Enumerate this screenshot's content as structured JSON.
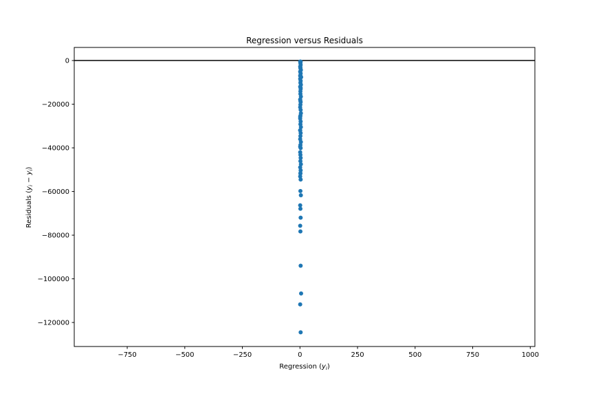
{
  "chart_data": {
    "type": "scatter",
    "title": "Regression versus Residuals",
    "xlabel": "Regression ($\\hat{y}_i$)",
    "xlabel_parts": {
      "main": "Regression (",
      "hat": "y",
      "sub": "i",
      "close": ")"
    },
    "ylabel": "Residuals ($\\hat{y}_i - y_i$)",
    "ylabel_parts": {
      "main": "Residuals (",
      "hat": "y",
      "sub": "i",
      "minus": " − y",
      "sub2": "i",
      "close": ")"
    },
    "xlim": [
      -980,
      1020
    ],
    "ylim": [
      -131000,
      6000
    ],
    "xticks": [
      -750,
      -500,
      -250,
      0,
      250,
      500,
      750,
      1000
    ],
    "xtick_labels": [
      "−750",
      "−500",
      "−250",
      "0",
      "250",
      "500",
      "750",
      "1000"
    ],
    "yticks": [
      0,
      -20000,
      -40000,
      -60000,
      -80000,
      -100000,
      -120000
    ],
    "ytick_labels": [
      "0",
      "−20000",
      "−40000",
      "−60000",
      "−80000",
      "−100000",
      "−120000"
    ],
    "reference_line": {
      "y": 0,
      "color": "#000000"
    },
    "grid": false,
    "marker_color": "#1f77b4",
    "line_color": "#000000",
    "x": [
      1,
      2,
      3,
      1,
      2,
      4,
      1,
      3,
      2,
      5,
      1,
      3,
      2,
      4,
      1,
      3,
      2,
      2,
      4,
      1,
      3,
      2,
      1,
      3,
      4,
      2,
      1,
      3,
      2,
      4,
      1,
      3,
      2,
      1,
      4,
      2,
      3,
      1,
      2,
      3,
      2,
      4,
      1,
      3,
      2,
      1,
      3,
      2,
      4,
      1,
      2,
      3,
      1,
      2,
      3,
      5,
      1,
      3,
      3,
      2,
      1,
      3,
      2,
      1,
      1,
      1,
      2
    ],
    "y": [
      -500,
      -1200,
      -2000,
      -2800,
      -3500,
      -4300,
      -5100,
      -5900,
      -6800,
      -7600,
      -8400,
      -9300,
      -10200,
      -11100,
      -12000,
      -13000,
      -14100,
      -15300,
      -16500,
      -17800,
      -19000,
      -20200,
      -21400,
      -22600,
      -24100,
      -25300,
      -26600,
      -27900,
      -29200,
      -30500,
      -31900,
      -33200,
      -34600,
      -36000,
      -37300,
      -38700,
      -40100,
      -42000,
      -43200,
      -44600,
      -46100,
      -47500,
      -48900,
      -50300,
      -51600,
      -53100,
      -54500,
      -59800,
      -61700,
      -66300,
      -67900,
      -72000,
      -75700,
      -78300,
      -94000,
      -106700,
      -111700,
      -124500,
      -500,
      -3000,
      -7000,
      -12500,
      -18500,
      -25800,
      -32000,
      -39500,
      -51800
    ]
  }
}
